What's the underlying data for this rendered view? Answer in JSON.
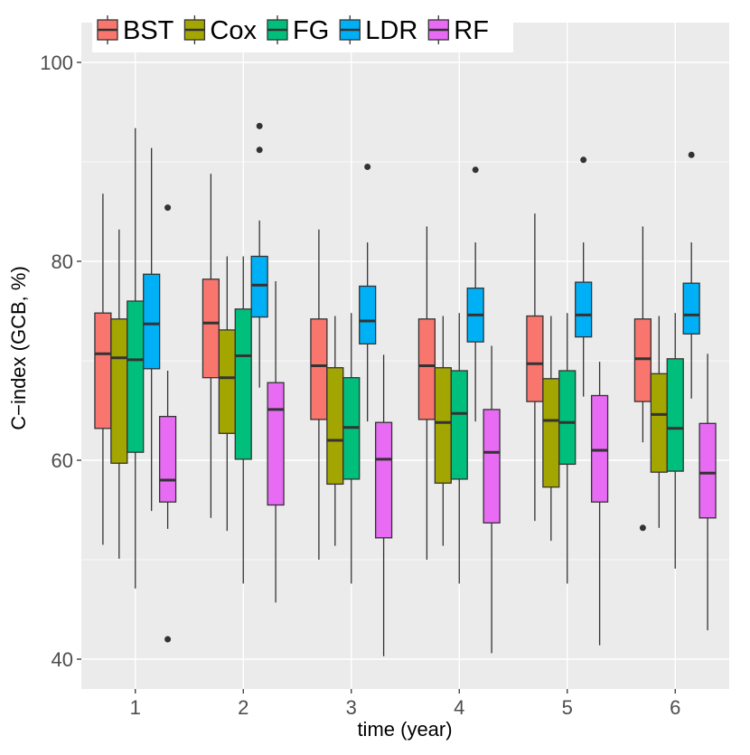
{
  "chart_data": {
    "type": "boxplot",
    "xlabel": "time (year)",
    "ylabel": "C−index (GCB, %)",
    "ylim": [
      37,
      104
    ],
    "yticks": [
      40,
      60,
      80,
      100
    ],
    "y_tick_labels": [
      "40",
      "60",
      "80",
      "100"
    ],
    "categories": [
      "1",
      "2",
      "3",
      "4",
      "5",
      "6"
    ],
    "grid": true,
    "legend_position": "top-left",
    "series": [
      {
        "name": "BST",
        "color": "#F8766D",
        "boxes": [
          {
            "min": 51.5,
            "q1": 63.2,
            "median": 70.7,
            "q3": 74.8,
            "max": 86.8,
            "outliers": []
          },
          {
            "min": 54.2,
            "q1": 68.3,
            "median": 73.8,
            "q3": 78.2,
            "max": 88.8,
            "outliers": []
          },
          {
            "min": 50.0,
            "q1": 64.1,
            "median": 69.5,
            "q3": 74.2,
            "max": 83.2,
            "outliers": []
          },
          {
            "min": 50.0,
            "q1": 64.1,
            "median": 69.5,
            "q3": 74.2,
            "max": 83.5,
            "outliers": []
          },
          {
            "min": 53.9,
            "q1": 65.9,
            "median": 69.7,
            "q3": 74.5,
            "max": 84.8,
            "outliers": []
          },
          {
            "min": 61.8,
            "q1": 65.9,
            "median": 70.2,
            "q3": 74.2,
            "max": 83.5,
            "outliers": [
              53.2
            ]
          }
        ]
      },
      {
        "name": "Cox",
        "color": "#A3A500",
        "boxes": [
          {
            "min": 50.1,
            "q1": 59.7,
            "median": 70.3,
            "q3": 74.2,
            "max": 83.2,
            "outliers": []
          },
          {
            "min": 52.9,
            "q1": 62.7,
            "median": 68.3,
            "q3": 73.1,
            "max": 80.5,
            "outliers": []
          },
          {
            "min": 51.4,
            "q1": 57.6,
            "median": 62.0,
            "q3": 69.3,
            "max": 74.5,
            "outliers": []
          },
          {
            "min": 51.4,
            "q1": 57.7,
            "median": 63.8,
            "q3": 69.3,
            "max": 74.5,
            "outliers": []
          },
          {
            "min": 51.9,
            "q1": 57.3,
            "median": 64.0,
            "q3": 68.2,
            "max": 74.5,
            "outliers": []
          },
          {
            "min": 53.2,
            "q1": 58.8,
            "median": 64.6,
            "q3": 68.7,
            "max": 74.5,
            "outliers": []
          }
        ]
      },
      {
        "name": "FG",
        "color": "#00BF7D",
        "boxes": [
          {
            "min": 47.1,
            "q1": 60.8,
            "median": 70.1,
            "q3": 76.0,
            "max": 93.4,
            "outliers": []
          },
          {
            "min": 47.6,
            "q1": 60.1,
            "median": 70.5,
            "q3": 75.2,
            "max": 80.5,
            "outliers": []
          },
          {
            "min": 47.6,
            "q1": 58.1,
            "median": 63.3,
            "q3": 68.3,
            "max": 74.8,
            "outliers": []
          },
          {
            "min": 47.6,
            "q1": 58.1,
            "median": 64.7,
            "q3": 69.0,
            "max": 74.8,
            "outliers": []
          },
          {
            "min": 47.6,
            "q1": 59.6,
            "median": 63.8,
            "q3": 69.0,
            "max": 74.8,
            "outliers": []
          },
          {
            "min": 49.1,
            "q1": 58.9,
            "median": 63.2,
            "q3": 70.2,
            "max": 74.8,
            "outliers": []
          }
        ]
      },
      {
        "name": "LDR",
        "color": "#00B0F6",
        "boxes": [
          {
            "min": 54.9,
            "q1": 69.2,
            "median": 73.7,
            "q3": 78.7,
            "max": 91.4,
            "outliers": []
          },
          {
            "min": 67.3,
            "q1": 74.4,
            "median": 77.6,
            "q3": 80.5,
            "max": 84.1,
            "outliers": [
              91.2,
              93.6
            ]
          },
          {
            "min": 63.9,
            "q1": 71.7,
            "median": 74.0,
            "q3": 77.5,
            "max": 81.9,
            "outliers": [
              89.5
            ]
          },
          {
            "min": 63.9,
            "q1": 71.9,
            "median": 74.6,
            "q3": 77.3,
            "max": 81.9,
            "outliers": [
              89.2
            ]
          },
          {
            "min": 66.4,
            "q1": 72.4,
            "median": 74.6,
            "q3": 77.9,
            "max": 81.9,
            "outliers": [
              90.2
            ]
          },
          {
            "min": 66.2,
            "q1": 72.7,
            "median": 74.6,
            "q3": 77.8,
            "max": 81.9,
            "outliers": [
              90.7
            ]
          }
        ]
      },
      {
        "name": "RF",
        "color": "#E76BF3",
        "boxes": [
          {
            "min": 53.1,
            "q1": 55.8,
            "median": 58.0,
            "q3": 64.4,
            "max": 69.0,
            "outliers": [
              42.0,
              85.4
            ]
          },
          {
            "min": 45.7,
            "q1": 55.5,
            "median": 65.1,
            "q3": 67.8,
            "max": 78.0,
            "outliers": []
          },
          {
            "min": 40.3,
            "q1": 52.2,
            "median": 60.1,
            "q3": 63.8,
            "max": 70.6,
            "outliers": []
          },
          {
            "min": 40.6,
            "q1": 53.7,
            "median": 60.8,
            "q3": 65.1,
            "max": 71.5,
            "outliers": []
          },
          {
            "min": 41.4,
            "q1": 55.8,
            "median": 61.0,
            "q3": 66.5,
            "max": 69.9,
            "outliers": []
          },
          {
            "min": 42.9,
            "q1": 54.2,
            "median": 58.7,
            "q3": 63.7,
            "max": 70.7,
            "outliers": []
          }
        ]
      }
    ]
  }
}
